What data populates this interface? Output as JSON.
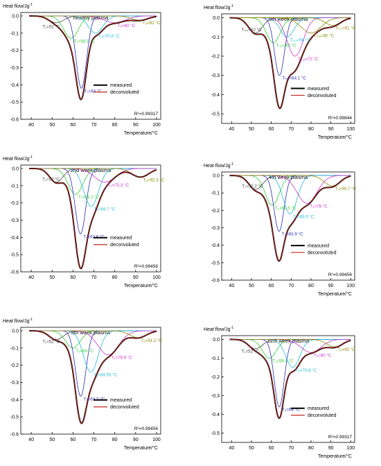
{
  "figure": {
    "legend_measured": "measured",
    "legend_deconvoluted": "deconvoluted",
    "xlabel": "Temperature/°C",
    "ylabel": "Heat flow/Jg",
    "ylabel_sup": "-1"
  },
  "colors": {
    "measured": "#000000",
    "deconvoluted": "#c0261c",
    "T1": "#404040",
    "T2": "#33cc33",
    "T3": "#2b2bb8",
    "T4": "#22bbd8",
    "T5": "#cc33cc",
    "T6": "#8a8a00"
  },
  "chart_data": [
    {
      "type": "line",
      "title": "healthy plasma",
      "xlim": [
        35,
        102
      ],
      "ylim": [
        -0.6,
        0.02
      ],
      "xticks": [
        40,
        50,
        60,
        70,
        80,
        90,
        100
      ],
      "yticks": [
        0.0,
        -0.1,
        -0.2,
        -0.3,
        -0.4,
        -0.5,
        -0.6
      ],
      "r2": "R²=0.99317",
      "series": [
        {
          "name": "measured"
        },
        {
          "name": "deconvoluted"
        }
      ],
      "peaks": [
        {
          "name": "T1",
          "center": 52,
          "amp": 0.04,
          "width": 3.5,
          "label": "T₁=52 °C"
        },
        {
          "name": "T2",
          "center": 59.1,
          "amp": 0.13,
          "width": 3.5,
          "label": "T₂=59.1 °C"
        },
        {
          "name": "T3",
          "center": 64,
          "amp": 0.42,
          "width": 2.5,
          "label": "T₃=64 °C"
        },
        {
          "name": "T4",
          "center": 70.8,
          "amp": 0.1,
          "width": 3.5,
          "label": "T₄=70.8 °C"
        },
        {
          "name": "T5",
          "center": 80,
          "amp": 0.04,
          "width": 5,
          "label": "T₅=80 °C"
        },
        {
          "name": "T6",
          "center": 92,
          "amp": 0.025,
          "width": 4,
          "label": "T₆=92 °C"
        }
      ]
    },
    {
      "type": "line",
      "title": "0th week plasma",
      "xlim": [
        35,
        102
      ],
      "ylim": [
        -0.55,
        0.02
      ],
      "xticks": [
        40,
        50,
        60,
        70,
        80,
        90,
        100
      ],
      "yticks": [
        0.0,
        -0.1,
        -0.2,
        -0.3,
        -0.4,
        -0.5
      ],
      "r2": "R²=0.99844",
      "series": [
        {
          "name": "measured"
        },
        {
          "name": "deconvoluted"
        }
      ],
      "peaks": [
        {
          "name": "T1",
          "center": 52,
          "amp": 0.08,
          "width": 3.5,
          "label": "Tₘ₁=52 °C"
        },
        {
          "name": "T2",
          "center": 61,
          "amp": 0.13,
          "width": 3.5,
          "label": "Tₘ₂=61 °C"
        },
        {
          "name": "T3",
          "center": 64.1,
          "amp": 0.3,
          "width": 2.5,
          "label": "Tₘ₃=64.1 °C"
        },
        {
          "name": "T4",
          "center": 68,
          "amp": 0.1,
          "width": 3.5,
          "label": "Tₘ₄=68 °C"
        },
        {
          "name": "T5",
          "center": 72,
          "amp": 0.2,
          "width": 4,
          "label": "Tₘ₅=72 °C"
        },
        {
          "name": "T6",
          "center": 80,
          "amp": 0.08,
          "width": 5,
          "label": "Tₘ₆=80 °C"
        },
        {
          "name": "T7",
          "center": 91,
          "amp": 0.04,
          "width": 4,
          "label": "Tₘ₇=91 °C"
        }
      ]
    },
    {
      "type": "line",
      "title": "2nd week plasma",
      "xlim": [
        35,
        102
      ],
      "ylim": [
        -0.6,
        0.02
      ],
      "xticks": [
        40,
        50,
        60,
        70,
        80,
        90,
        100
      ],
      "yticks": [
        0.0,
        -0.1,
        -0.2,
        -0.3,
        -0.4,
        -0.5,
        -0.6
      ],
      "r2": "R²=0.99456",
      "series": [
        {
          "name": "measured"
        },
        {
          "name": "deconvoluted"
        }
      ],
      "peaks": [
        {
          "name": "T1",
          "center": 52,
          "amp": 0.08,
          "width": 3.2,
          "label": "T₁=52 °C"
        },
        {
          "name": "T2",
          "center": 61.2,
          "amp": 0.15,
          "width": 3.5,
          "label": "T₂=61.2 °C"
        },
        {
          "name": "T3",
          "center": 63.6,
          "amp": 0.38,
          "width": 2.5,
          "label": "T₃=63.6 °C"
        },
        {
          "name": "T4",
          "center": 68.7,
          "amp": 0.22,
          "width": 3.5,
          "label": "T₄=68.7 °C"
        },
        {
          "name": "T5",
          "center": 75.3,
          "amp": 0.08,
          "width": 5,
          "label": "T₅=75.3 °C"
        },
        {
          "name": "T6",
          "center": 92.3,
          "amp": 0.05,
          "width": 4,
          "label": "T₆=92.3 °C"
        }
      ]
    },
    {
      "type": "line",
      "title": "4th week plasma",
      "xlim": [
        35,
        102
      ],
      "ylim": [
        -0.6,
        0.02
      ],
      "xticks": [
        40,
        50,
        60,
        70,
        80,
        90,
        100
      ],
      "yticks": [
        0.0,
        -0.1,
        -0.2,
        -0.3,
        -0.4,
        -0.5,
        -0.6
      ],
      "r2": "R²=0.99456",
      "series": [
        {
          "name": "measured"
        },
        {
          "name": "deconvoluted"
        }
      ],
      "peaks": [
        {
          "name": "T1",
          "center": 52.2,
          "amp": 0.08,
          "width": 3.5,
          "label": "T₁=52.2 °C"
        },
        {
          "name": "T2",
          "center": 60.5,
          "amp": 0.17,
          "width": 3.5,
          "label": "T₂=60.5 °C"
        },
        {
          "name": "T3",
          "center": 63.9,
          "amp": 0.32,
          "width": 2.5,
          "label": "T₃=63.9 °C"
        },
        {
          "name": "T4",
          "center": 69.5,
          "amp": 0.22,
          "width": 3.5,
          "label": "T₄=69.5 °C"
        },
        {
          "name": "T5",
          "center": 78,
          "amp": 0.16,
          "width": 5,
          "label": "T₅=78 °C"
        },
        {
          "name": "T6",
          "center": 90.7,
          "amp": 0.06,
          "width": 4,
          "label": "T₆=90.7 °C"
        }
      ]
    },
    {
      "type": "line",
      "title": "8th week plasma",
      "xlim": [
        35,
        102
      ],
      "ylim": [
        -0.6,
        0.02
      ],
      "xticks": [
        40,
        50,
        60,
        70,
        80,
        90,
        100
      ],
      "yticks": [
        0.0,
        -0.1,
        -0.2,
        -0.3,
        -0.4,
        -0.5,
        -0.6
      ],
      "r2": "R²=0.99456",
      "series": [
        {
          "name": "measured"
        },
        {
          "name": "deconvoluted"
        }
      ],
      "peaks": [
        {
          "name": "T1",
          "center": 52,
          "amp": 0.05,
          "width": 3.5,
          "label": "T₁=52 °C"
        },
        {
          "name": "T2",
          "center": 60,
          "amp": 0.1,
          "width": 3.5,
          "label": "T₂=60 °C"
        },
        {
          "name": "T3",
          "center": 63.7,
          "amp": 0.38,
          "width": 2.5,
          "label": "T₃=63.7 °C"
        },
        {
          "name": "T4",
          "center": 68.55,
          "amp": 0.24,
          "width": 3.5,
          "label": "T₄=68.55 °C"
        },
        {
          "name": "T5",
          "center": 76.9,
          "amp": 0.14,
          "width": 5,
          "label": "T₅=76.9 °C"
        },
        {
          "name": "T6",
          "center": 91.2,
          "amp": 0.04,
          "width": 4,
          "label": "T₆=91.2 °C"
        }
      ]
    },
    {
      "type": "line",
      "title": "12th week plasma",
      "xlim": [
        35,
        102
      ],
      "ylim": [
        -0.55,
        0.02
      ],
      "xticks": [
        40,
        50,
        60,
        70,
        80,
        90,
        100
      ],
      "yticks": [
        0.0,
        -0.1,
        -0.2,
        -0.3,
        -0.4,
        -0.5
      ],
      "r2": "R²=0.99317",
      "series": [
        {
          "name": "measured"
        },
        {
          "name": "deconvoluted"
        }
      ],
      "peaks": [
        {
          "name": "T1",
          "center": 52,
          "amp": 0.05,
          "width": 3.5,
          "label": "T₁=52 °C"
        },
        {
          "name": "T2",
          "center": 59.1,
          "amp": 0.1,
          "width": 3.5,
          "label": "T₂=59.1 °C"
        },
        {
          "name": "T3",
          "center": 64,
          "amp": 0.36,
          "width": 2.5,
          "label": "T₃=64 °C"
        },
        {
          "name": "T4",
          "center": 70.8,
          "amp": 0.15,
          "width": 3.5,
          "label": "T₄=70.8 °C"
        },
        {
          "name": "T5",
          "center": 80,
          "amp": 0.07,
          "width": 5,
          "label": "T₅=80 °C"
        },
        {
          "name": "T6",
          "center": 92,
          "amp": 0.04,
          "width": 4,
          "label": "T₆=92 °C"
        }
      ]
    }
  ]
}
